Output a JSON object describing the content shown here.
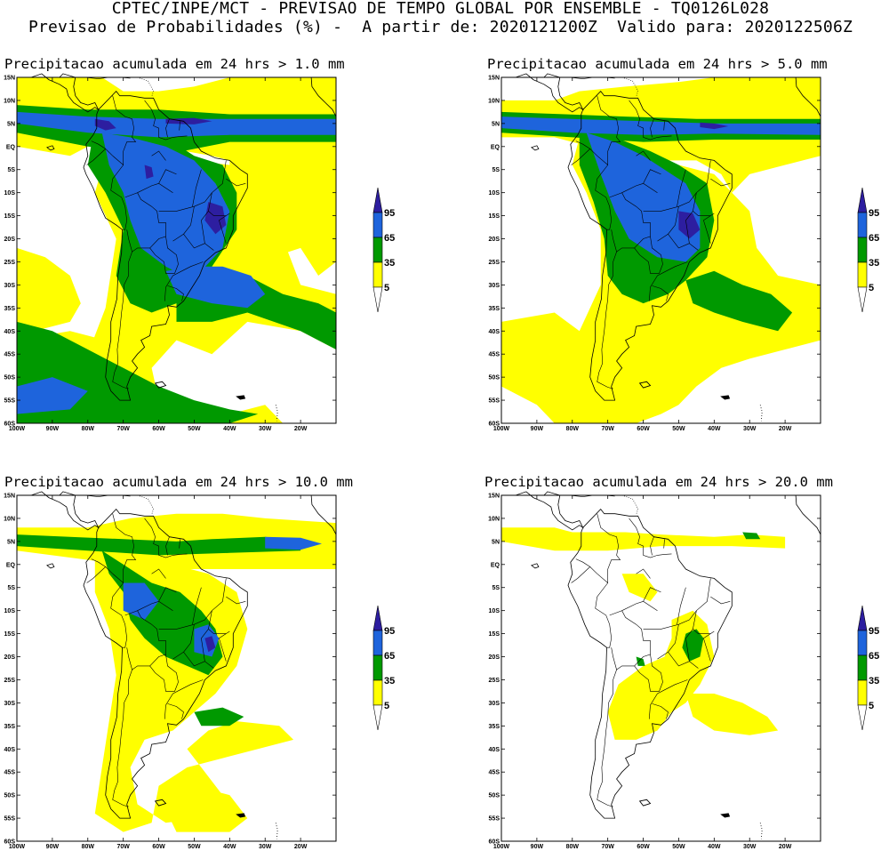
{
  "header": {
    "line1": "CPTEC/INPE/MCT - PREVISAO DE TEMPO GLOBAL POR ENSEMBLE - TQ0126L028",
    "line2": "Previsao de Probabilidades (%) -  A partir de: 2020121200Z  Valido para: 2020122506Z"
  },
  "colors": {
    "p5": "#ffff00",
    "p35": "#009900",
    "p65": "#1e64dc",
    "p95": "#2d1ea0",
    "land": "#ffffff",
    "border": "#000000"
  },
  "axes": {
    "lat_labels": [
      "15N",
      "10N",
      "5N",
      "EQ",
      "5S",
      "10S",
      "15S",
      "20S",
      "25S",
      "30S",
      "35S",
      "40S",
      "45S",
      "50S",
      "55S",
      "60S"
    ],
    "lon_labels": [
      "100W",
      "90W",
      "80W",
      "70W",
      "60W",
      "50W",
      "40W",
      "30W",
      "20W"
    ],
    "lat_range": [
      15,
      -60
    ],
    "lon_range": [
      -100,
      -10
    ]
  },
  "colorbar": {
    "levels": [
      "95",
      "65",
      "35",
      "5"
    ],
    "level_colors": [
      "p95",
      "p65",
      "p35",
      "p5"
    ]
  },
  "panels": [
    {
      "id": "p1",
      "title": "Precipitacao acumulada em 24 hrs > 1.0 mm",
      "threshold_mm": 1.0
    },
    {
      "id": "p2",
      "title": "Precipitacao acumulada em 24 hrs > 5.0 mm",
      "threshold_mm": 5.0
    },
    {
      "id": "p3",
      "title": "Precipitacao acumulada em 24 hrs > 10.0 mm",
      "threshold_mm": 10.0
    },
    {
      "id": "p4",
      "title": "Precipitacao acumulada em 24 hrs > 20.0 mm",
      "threshold_mm": 20.0
    }
  ]
}
